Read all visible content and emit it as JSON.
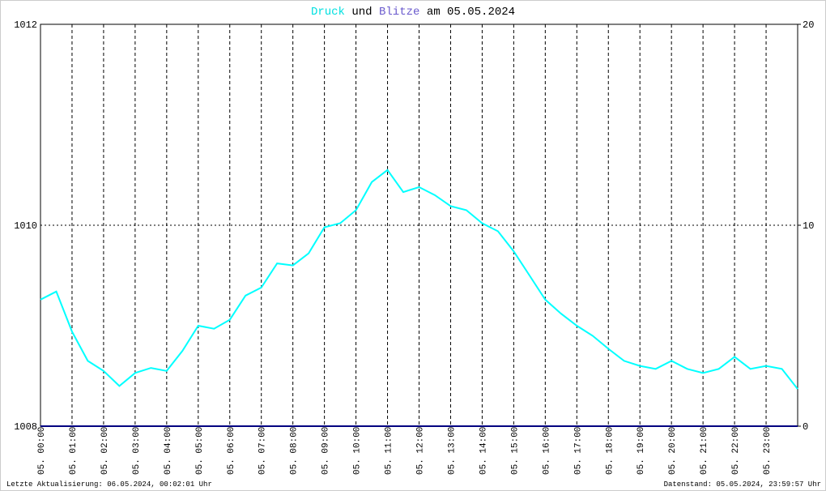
{
  "chart_data": {
    "type": "line",
    "title_parts": [
      "Druck",
      "und",
      "Blitze",
      "am 05.05.2024"
    ],
    "x": [
      0,
      0.5,
      1,
      1.5,
      2,
      2.5,
      3,
      3.5,
      4,
      4.5,
      5,
      5.5,
      6,
      6.5,
      7,
      7.5,
      8,
      8.5,
      9,
      9.5,
      10,
      10.5,
      11,
      11.5,
      12,
      12.5,
      13,
      13.5,
      14,
      14.5,
      15,
      15.5,
      16,
      16.5,
      17,
      17.5,
      18,
      18.5,
      19,
      19.5,
      20,
      20.5,
      21,
      21.5,
      22,
      22.5,
      23,
      23.5,
      24
    ],
    "series": [
      {
        "name": "Druck",
        "color": "#00ffff",
        "axis": "y",
        "values": [
          1009.26,
          1009.34,
          1008.94,
          1008.65,
          1008.55,
          1008.4,
          1008.53,
          1008.58,
          1008.55,
          1008.75,
          1009.0,
          1008.97,
          1009.06,
          1009.3,
          1009.38,
          1009.62,
          1009.6,
          1009.72,
          1009.98,
          1010.02,
          1010.15,
          1010.43,
          1010.55,
          1010.33,
          1010.38,
          1010.3,
          1010.19,
          1010.15,
          1010.02,
          1009.94,
          1009.74,
          1009.5,
          1009.26,
          1009.12,
          1009.0,
          1008.9,
          1008.77,
          1008.65,
          1008.6,
          1008.57,
          1008.65,
          1008.57,
          1008.53,
          1008.57,
          1008.69,
          1008.57,
          1008.6,
          1008.57,
          1008.37
        ]
      },
      {
        "name": "Blitze",
        "color": "#000080",
        "axis": "y2",
        "values": [
          0,
          0,
          0,
          0,
          0,
          0,
          0,
          0,
          0,
          0,
          0,
          0,
          0,
          0,
          0,
          0,
          0,
          0,
          0,
          0,
          0,
          0,
          0,
          0,
          0,
          0,
          0,
          0,
          0,
          0,
          0,
          0,
          0,
          0,
          0,
          0,
          0,
          0,
          0,
          0,
          0,
          0,
          0,
          0,
          0,
          0,
          0,
          0,
          0
        ]
      }
    ],
    "xlim": [
      0,
      24
    ],
    "xticks": [
      {
        "value": 0,
        "label": "05. 00:00"
      },
      {
        "value": 1,
        "label": "05. 01:00"
      },
      {
        "value": 2,
        "label": "05. 02:00"
      },
      {
        "value": 3,
        "label": "05. 03:00"
      },
      {
        "value": 4,
        "label": "05. 04:00"
      },
      {
        "value": 5,
        "label": "05. 05:00"
      },
      {
        "value": 6,
        "label": "05. 06:00"
      },
      {
        "value": 7,
        "label": "05. 07:00"
      },
      {
        "value": 8,
        "label": "05. 08:00"
      },
      {
        "value": 9,
        "label": "05. 09:00"
      },
      {
        "value": 10,
        "label": "05. 10:00"
      },
      {
        "value": 11,
        "label": "05. 11:00"
      },
      {
        "value": 12,
        "label": "05. 12:00"
      },
      {
        "value": 13,
        "label": "05. 13:00"
      },
      {
        "value": 14,
        "label": "05. 14:00"
      },
      {
        "value": 15,
        "label": "05. 15:00"
      },
      {
        "value": 16,
        "label": "05. 16:00"
      },
      {
        "value": 17,
        "label": "05. 17:00"
      },
      {
        "value": 18,
        "label": "05. 18:00"
      },
      {
        "value": 19,
        "label": "05. 19:00"
      },
      {
        "value": 20,
        "label": "05. 20:00"
      },
      {
        "value": 21,
        "label": "05. 21:00"
      },
      {
        "value": 22,
        "label": "05. 22:00"
      },
      {
        "value": 23,
        "label": "05. 23:00"
      }
    ],
    "ylim": [
      1008,
      1012
    ],
    "yticks": [
      1008,
      1010,
      1012
    ],
    "y2lim": [
      0,
      20
    ],
    "y2ticks": [
      0,
      10,
      20
    ],
    "grid": true,
    "footer_left": "Letzte Aktualisierung: 06.05.2024, 00:02:01 Uhr",
    "footer_right": "Datenstand: 05.05.2024, 23:59:57 Uhr"
  }
}
